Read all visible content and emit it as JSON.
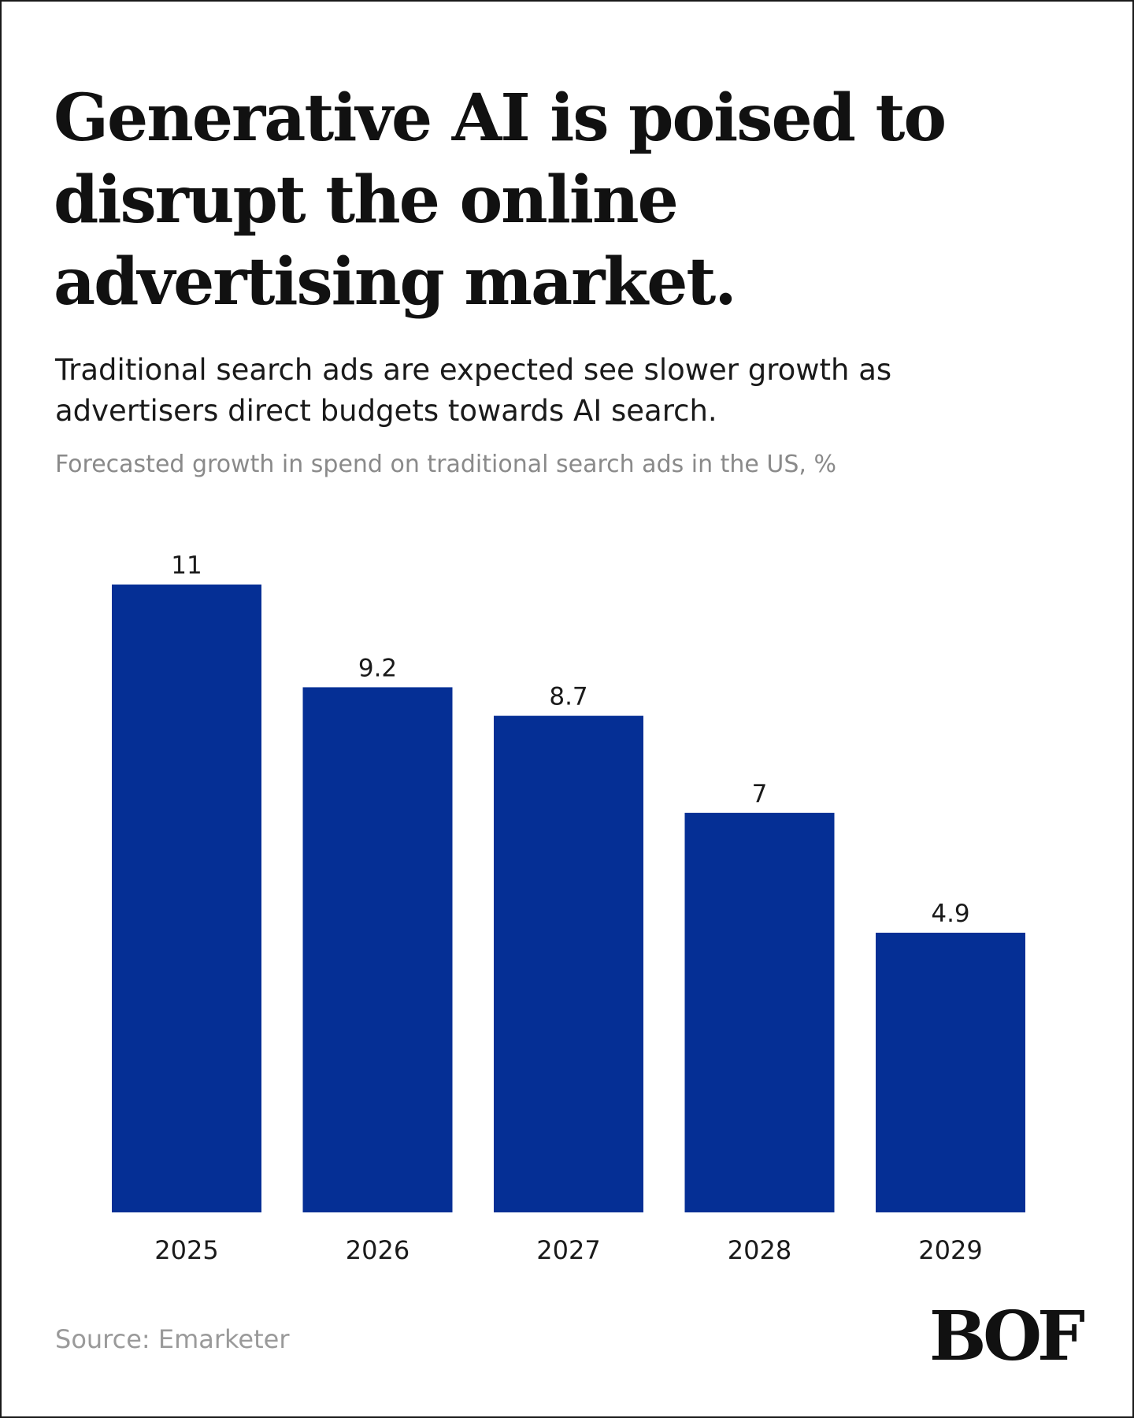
{
  "header": {
    "headline": "Generative AI is poised to disrupt the online advertising market.",
    "subtitle": "Traditional search ads are expected see slower growth as advertisers direct budgets towards AI search.",
    "caption": "Forecasted growth in spend on traditional search ads in the US, %"
  },
  "footer": {
    "source": "Source: Emarketer",
    "logo_text": "BOF"
  },
  "colors": {
    "bar": "#052f95",
    "label": "#1a1a1a"
  },
  "chart_data": {
    "type": "bar",
    "categories": [
      "2025",
      "2026",
      "2027",
      "2028",
      "2029"
    ],
    "values": [
      11,
      9.2,
      8.7,
      7,
      4.9
    ],
    "value_labels": [
      "11",
      "9.2",
      "8.7",
      "7",
      "4.9"
    ],
    "title": "Forecasted growth in spend on traditional search ads in the US, %",
    "xlabel": "",
    "ylabel": "",
    "ylim": [
      0,
      11
    ],
    "grid": false,
    "legend": "none"
  }
}
